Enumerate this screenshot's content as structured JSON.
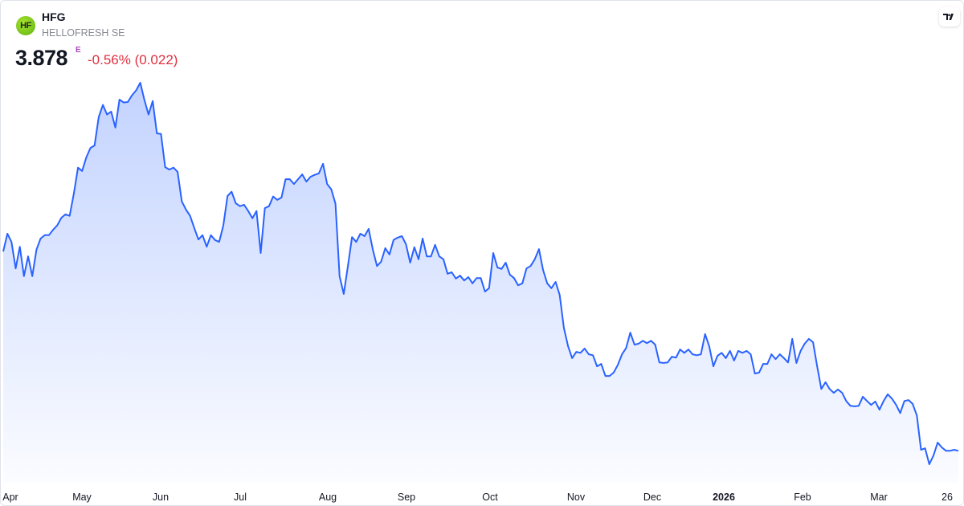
{
  "header": {
    "logo_text": "HF",
    "symbol": "HFG",
    "company": "HELLOFRESH SE",
    "price": "3.878",
    "price_flag": "E",
    "change": "-0.56% (0.022)"
  },
  "colors": {
    "line": "#2962ff",
    "change_negative": "#e0303f",
    "logo": "#7cc520",
    "flag": "#ab47bc"
  },
  "icons": {
    "brand": "tradingview-logo-icon"
  },
  "chart_data": {
    "type": "area",
    "title": "",
    "xlabel": "",
    "ylabel": "",
    "grid": false,
    "y_axis_shown": false,
    "x_ticks": [
      {
        "label": "Apr",
        "bold": false
      },
      {
        "label": "May",
        "bold": false
      },
      {
        "label": "Jun",
        "bold": false
      },
      {
        "label": "Jul",
        "bold": false
      },
      {
        "label": "Aug",
        "bold": false
      },
      {
        "label": "Sep",
        "bold": false
      },
      {
        "label": "Oct",
        "bold": false
      },
      {
        "label": "Nov",
        "bold": false
      },
      {
        "label": "Dec",
        "bold": false
      },
      {
        "label": "2026",
        "bold": true
      },
      {
        "label": "Feb",
        "bold": false
      },
      {
        "label": "Mar",
        "bold": false
      },
      {
        "label": "26",
        "bold": false
      }
    ],
    "values": [
      8.01,
      8.38,
      8.21,
      7.66,
      8.11,
      7.5,
      7.91,
      7.5,
      8.05,
      8.28,
      8.35,
      8.35,
      8.46,
      8.55,
      8.71,
      8.78,
      8.75,
      9.21,
      9.75,
      9.68,
      9.96,
      10.16,
      10.21,
      10.8,
      11.05,
      10.85,
      10.91,
      10.58,
      11.16,
      11.1,
      11.11,
      11.25,
      11.35,
      11.51,
      11.15,
      10.85,
      11.13,
      10.46,
      10.45,
      9.76,
      9.71,
      9.75,
      9.66,
      9.05,
      8.88,
      8.75,
      8.5,
      8.26,
      8.35,
      8.11,
      8.35,
      8.25,
      8.21,
      8.55,
      9.16,
      9.25,
      9.01,
      8.95,
      8.98,
      8.85,
      8.7,
      8.85,
      7.98,
      8.91,
      8.95,
      9.15,
      9.08,
      9.13,
      9.51,
      9.51,
      9.41,
      9.51,
      9.61,
      9.46,
      9.56,
      9.6,
      9.63,
      9.83,
      9.41,
      9.3,
      9.0,
      7.5,
      7.13,
      7.71,
      8.31,
      8.21,
      8.38,
      8.33,
      8.48,
      8.05,
      7.71,
      7.8,
      8.08,
      7.95,
      8.25,
      8.3,
      8.33,
      8.16,
      7.78,
      8.1,
      7.85,
      8.28,
      7.91,
      7.91,
      8.15,
      7.91,
      7.85,
      7.55,
      7.58,
      7.45,
      7.51,
      7.41,
      7.48,
      7.35,
      7.46,
      7.46,
      7.18,
      7.25,
      7.98,
      7.68,
      7.65,
      7.78,
      7.53,
      7.46,
      7.31,
      7.35,
      7.66,
      7.71,
      7.85,
      8.06,
      7.63,
      7.35,
      7.25,
      7.38,
      7.11,
      6.43,
      6.05,
      5.8,
      5.93,
      5.91,
      6.0,
      5.88,
      5.86,
      5.63,
      5.68,
      5.43,
      5.43,
      5.5,
      5.66,
      5.88,
      6.01,
      6.33,
      6.08,
      6.1,
      6.16,
      6.11,
      6.16,
      6.08,
      5.71,
      5.7,
      5.71,
      5.83,
      5.81,
      5.98,
      5.91,
      5.98,
      5.88,
      5.86,
      5.88,
      6.3,
      6.05,
      5.63,
      5.85,
      5.91,
      5.8,
      5.95,
      5.75,
      5.95,
      5.91,
      5.95,
      5.88,
      5.48,
      5.5,
      5.68,
      5.68,
      5.88,
      5.78,
      5.88,
      5.8,
      5.71,
      6.2,
      5.7,
      5.95,
      6.1,
      6.2,
      6.13,
      5.63,
      5.16,
      5.3,
      5.16,
      5.08,
      5.15,
      5.08,
      4.91,
      4.81,
      4.8,
      4.81,
      5.0,
      4.91,
      4.83,
      4.9,
      4.73,
      4.91,
      5.05,
      4.96,
      4.83,
      4.66,
      4.91,
      4.93,
      4.85,
      4.61,
      3.9,
      3.93,
      3.6,
      3.78,
      4.05,
      3.95,
      3.88,
      3.88,
      3.9,
      3.878
    ]
  }
}
